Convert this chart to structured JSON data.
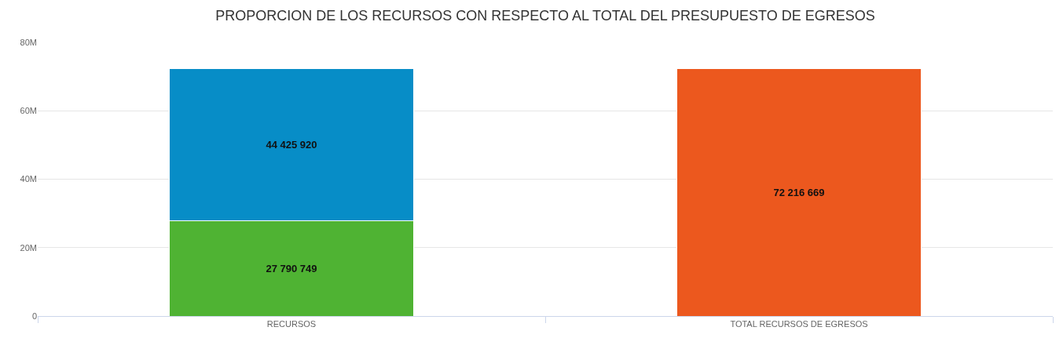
{
  "chart_data": {
    "type": "bar",
    "stacked": true,
    "title": "PROPORCION DE LOS RECURSOS CON RESPECTO AL TOTAL DEL PRESUPUESTO DE EGRESOS",
    "categories": [
      "RECURSOS",
      "TOTAL RECURSOS DE EGRESOS"
    ],
    "series": [
      {
        "color": "#4fb333",
        "values": [
          27790749,
          null
        ],
        "value_labels": [
          "27 790 749",
          null
        ]
      },
      {
        "color": "#078dc7",
        "values": [
          44425920,
          null
        ],
        "value_labels": [
          "44 425 920",
          null
        ]
      },
      {
        "color": "#ec581e",
        "values": [
          null,
          72216669
        ],
        "value_labels": [
          null,
          "72 216 669"
        ]
      }
    ],
    "ylim": [
      0,
      80000000
    ],
    "yticks": [
      0,
      {
        "value": 20000000,
        "label": "20M"
      },
      {
        "value": 40000000,
        "label": "40M"
      },
      {
        "value": 60000000,
        "label": "60M"
      },
      {
        "value": 80000000,
        "label": "80M"
      }
    ],
    "grid": "y"
  }
}
